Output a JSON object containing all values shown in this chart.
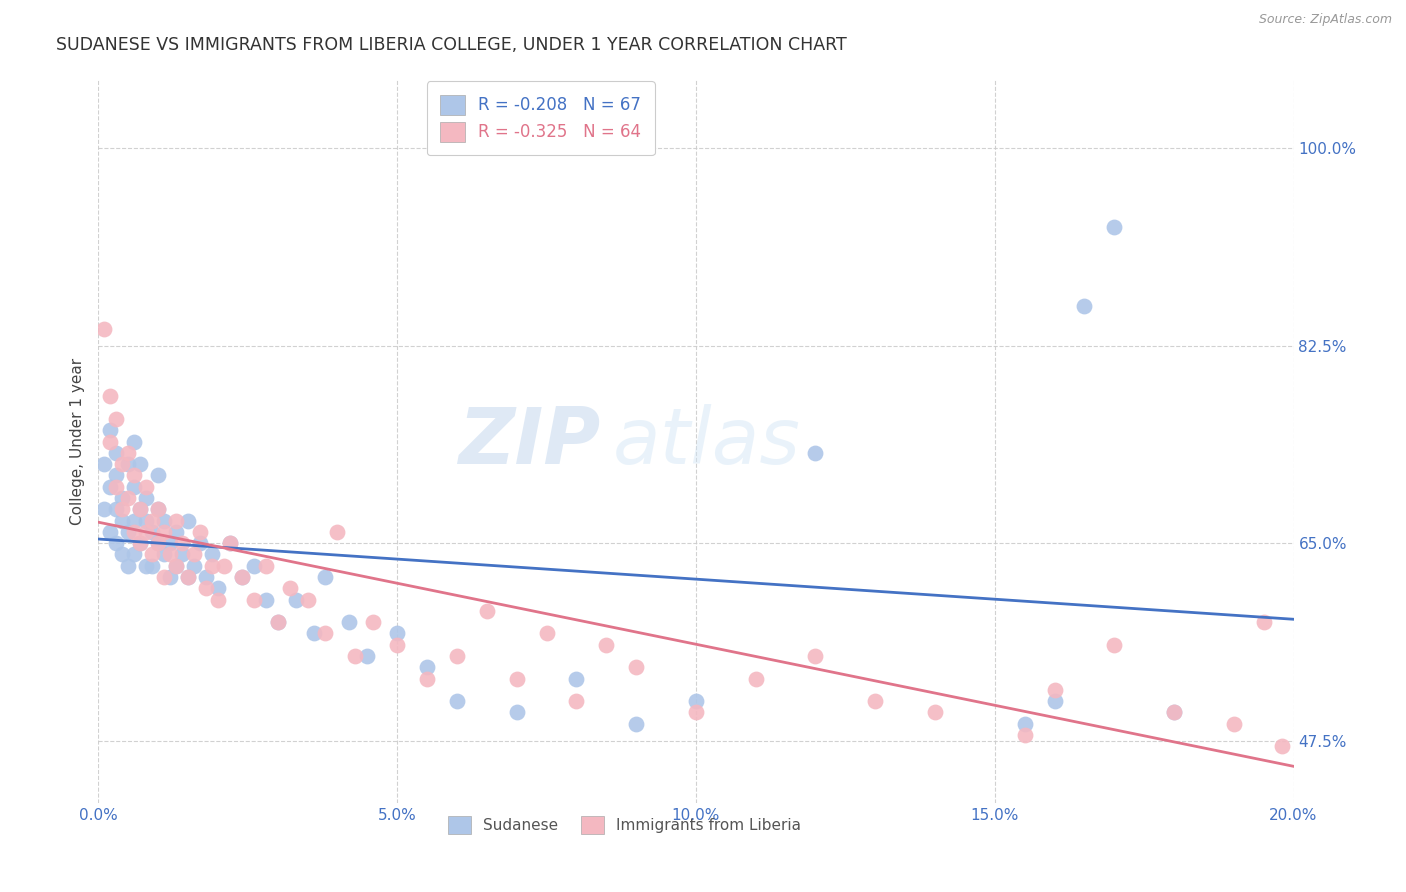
{
  "title": "SUDANESE VS IMMIGRANTS FROM LIBERIA COLLEGE, UNDER 1 YEAR CORRELATION CHART",
  "source": "Source: ZipAtlas.com",
  "xlabel_ticks": [
    "0.0%",
    "5.0%",
    "10.0%",
    "15.0%",
    "20.0%"
  ],
  "ylabel_label": "College, Under 1 year",
  "ylabel_ticks": [
    "47.5%",
    "65.0%",
    "82.5%",
    "100.0%"
  ],
  "xlim": [
    0.0,
    0.2
  ],
  "ylim": [
    0.42,
    1.06
  ],
  "x_tick_vals": [
    0.0,
    0.05,
    0.1,
    0.15,
    0.2
  ],
  "y_tick_vals": [
    0.475,
    0.65,
    0.825,
    1.0
  ],
  "background_color": "#ffffff",
  "grid_color": "#cccccc",
  "dot_color_sudanese": "#aec6e8",
  "dot_color_liberia": "#f4b8c1",
  "line_color_sudanese": "#4472c4",
  "line_color_liberia": "#e0748a",
  "watermark_zip": "ZIP",
  "watermark_atlas": "atlas",
  "legend_r1": "R = -0.208",
  "legend_n1": "N = 67",
  "legend_r2": "R = -0.325",
  "legend_n2": "N = 64",
  "legend_labels": [
    "Sudanese",
    "Immigrants from Liberia"
  ],
  "sudanese_x": [
    0.001,
    0.001,
    0.002,
    0.002,
    0.002,
    0.003,
    0.003,
    0.003,
    0.003,
    0.004,
    0.004,
    0.004,
    0.005,
    0.005,
    0.005,
    0.006,
    0.006,
    0.006,
    0.006,
    0.007,
    0.007,
    0.007,
    0.008,
    0.008,
    0.008,
    0.009,
    0.009,
    0.01,
    0.01,
    0.01,
    0.011,
    0.011,
    0.012,
    0.012,
    0.013,
    0.013,
    0.014,
    0.015,
    0.015,
    0.016,
    0.017,
    0.018,
    0.019,
    0.02,
    0.022,
    0.024,
    0.026,
    0.028,
    0.03,
    0.033,
    0.036,
    0.038,
    0.042,
    0.045,
    0.05,
    0.055,
    0.06,
    0.07,
    0.08,
    0.09,
    0.1,
    0.12,
    0.155,
    0.16,
    0.165,
    0.17,
    0.18
  ],
  "sudanese_y": [
    0.68,
    0.72,
    0.75,
    0.7,
    0.66,
    0.73,
    0.68,
    0.65,
    0.71,
    0.69,
    0.67,
    0.64,
    0.72,
    0.66,
    0.63,
    0.7,
    0.67,
    0.64,
    0.74,
    0.68,
    0.65,
    0.72,
    0.67,
    0.63,
    0.69,
    0.66,
    0.63,
    0.68,
    0.65,
    0.71,
    0.64,
    0.67,
    0.65,
    0.62,
    0.66,
    0.63,
    0.64,
    0.62,
    0.67,
    0.63,
    0.65,
    0.62,
    0.64,
    0.61,
    0.65,
    0.62,
    0.63,
    0.6,
    0.58,
    0.6,
    0.57,
    0.62,
    0.58,
    0.55,
    0.57,
    0.54,
    0.51,
    0.5,
    0.53,
    0.49,
    0.51,
    0.73,
    0.49,
    0.51,
    0.86,
    0.93,
    0.5
  ],
  "liberia_x": [
    0.001,
    0.002,
    0.002,
    0.003,
    0.003,
    0.004,
    0.004,
    0.005,
    0.005,
    0.006,
    0.006,
    0.007,
    0.007,
    0.008,
    0.008,
    0.009,
    0.009,
    0.01,
    0.01,
    0.011,
    0.011,
    0.012,
    0.013,
    0.013,
    0.014,
    0.015,
    0.016,
    0.017,
    0.018,
    0.019,
    0.02,
    0.021,
    0.022,
    0.024,
    0.026,
    0.028,
    0.03,
    0.032,
    0.035,
    0.038,
    0.04,
    0.043,
    0.046,
    0.05,
    0.055,
    0.06,
    0.065,
    0.07,
    0.075,
    0.08,
    0.085,
    0.09,
    0.1,
    0.11,
    0.12,
    0.13,
    0.14,
    0.155,
    0.16,
    0.17,
    0.18,
    0.19,
    0.195,
    0.198
  ],
  "liberia_y": [
    0.84,
    0.78,
    0.74,
    0.7,
    0.76,
    0.68,
    0.72,
    0.69,
    0.73,
    0.66,
    0.71,
    0.68,
    0.65,
    0.7,
    0.66,
    0.67,
    0.64,
    0.68,
    0.65,
    0.62,
    0.66,
    0.64,
    0.67,
    0.63,
    0.65,
    0.62,
    0.64,
    0.66,
    0.61,
    0.63,
    0.6,
    0.63,
    0.65,
    0.62,
    0.6,
    0.63,
    0.58,
    0.61,
    0.6,
    0.57,
    0.66,
    0.55,
    0.58,
    0.56,
    0.53,
    0.55,
    0.59,
    0.53,
    0.57,
    0.51,
    0.56,
    0.54,
    0.5,
    0.53,
    0.55,
    0.51,
    0.5,
    0.48,
    0.52,
    0.56,
    0.5,
    0.49,
    0.58,
    0.47
  ]
}
